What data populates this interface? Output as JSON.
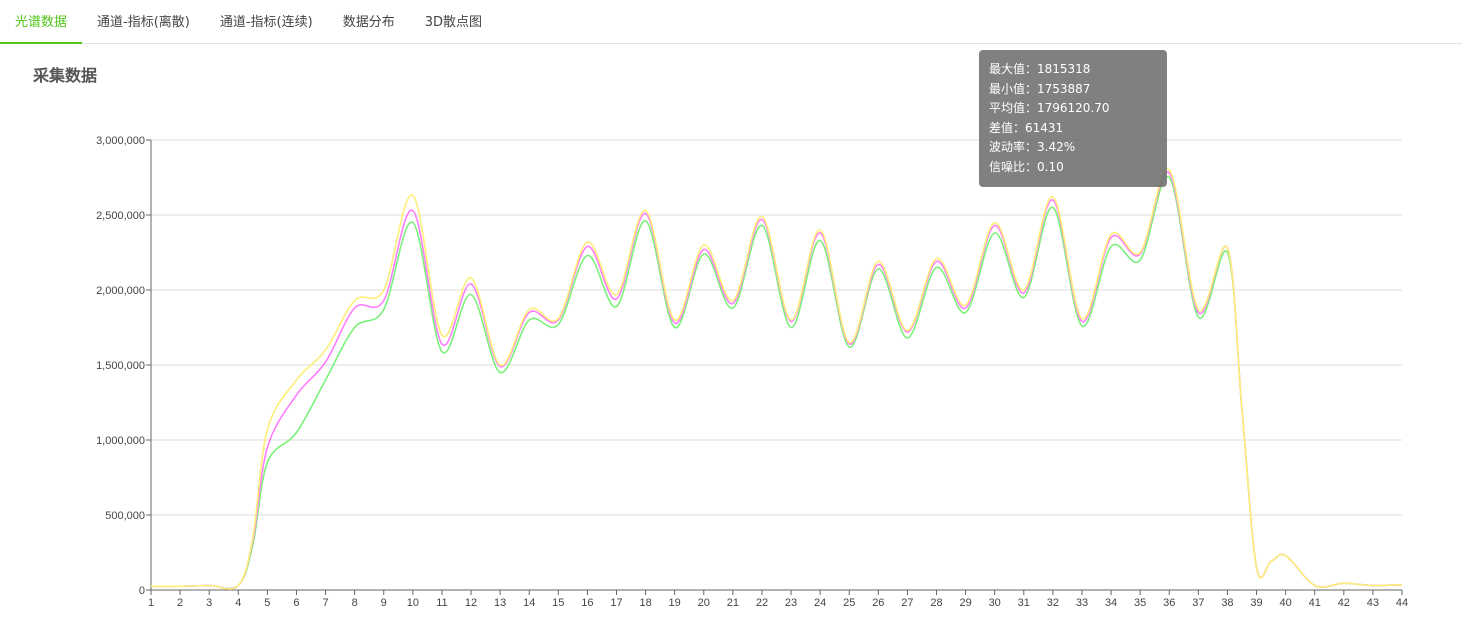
{
  "tabs": [
    {
      "label": "光谱数据",
      "active": true
    },
    {
      "label": "通道-指标(离散)"
    },
    {
      "label": "通道-指标(连续)"
    },
    {
      "label": "数据分布"
    },
    {
      "label": "3D散点图"
    }
  ],
  "section_title": "采集数据",
  "tooltip": {
    "max": "最大值：1815318",
    "min": "最小值：1753887",
    "avg": "平均值：1796120.70",
    "diff": "差值：61431",
    "volatility": "波动率：3.42%",
    "snr": "信噪比：0.10"
  },
  "colors": {
    "accent": "#52c41a"
  },
  "chart_data": {
    "type": "line",
    "xlim": [
      1,
      44
    ],
    "ylim": [
      0,
      3000000
    ],
    "grid": true,
    "x_ticks": [
      1,
      2,
      3,
      4,
      5,
      6,
      7,
      8,
      9,
      10,
      11,
      12,
      13,
      14,
      15,
      16,
      17,
      18,
      19,
      20,
      21,
      22,
      23,
      24,
      25,
      26,
      27,
      28,
      29,
      30,
      31,
      32,
      33,
      34,
      35,
      36,
      37,
      38,
      39,
      40,
      41,
      42,
      43,
      44
    ],
    "y_ticks": [
      "0",
      "500,000",
      "1,000,000",
      "1,500,000",
      "2,000,000",
      "2,500,000",
      "3,000,000"
    ],
    "y_tick_values": [
      0,
      500000,
      1000000,
      1500000,
      2000000,
      2500000,
      3000000
    ],
    "x": [
      1,
      2,
      3,
      4,
      4.5,
      5,
      6,
      7,
      8,
      9,
      10,
      11,
      12,
      13,
      14,
      15,
      16,
      17,
      18,
      19,
      20,
      21,
      22,
      23,
      24,
      25,
      26,
      27,
      28,
      29,
      30,
      31,
      32,
      33,
      34,
      35,
      36,
      37,
      38,
      38.5,
      39,
      39.5,
      40,
      41,
      42,
      43,
      44
    ],
    "series": [
      {
        "color": "#7bf27b",
        "values": [
          25000,
          25000,
          30000,
          30000,
          300000,
          850000,
          1050000,
          1400000,
          1750000,
          1870000,
          2450000,
          1590000,
          1970000,
          1450000,
          1800000,
          1770000,
          2230000,
          1890000,
          2460000,
          1750000,
          2240000,
          1880000,
          2430000,
          1750000,
          2330000,
          1620000,
          2140000,
          1680000,
          2150000,
          1850000,
          2380000,
          1950000,
          2550000,
          1760000,
          2290000,
          2200000,
          2750000,
          1820000,
          2250000,
          1200000,
          150000,
          190000,
          230000,
          30000,
          45000,
          30000,
          35000
        ]
      },
      {
        "color": "#ff7dff",
        "values": [
          25000,
          25000,
          30000,
          30000,
          330000,
          950000,
          1300000,
          1520000,
          1880000,
          1930000,
          2530000,
          1640000,
          2040000,
          1490000,
          1850000,
          1800000,
          2290000,
          1940000,
          2510000,
          1780000,
          2270000,
          1910000,
          2470000,
          1790000,
          2380000,
          1640000,
          2170000,
          1720000,
          2190000,
          1880000,
          2430000,
          1980000,
          2600000,
          1790000,
          2350000,
          2240000,
          2780000,
          1850000,
          2280000,
          1200000,
          150000,
          190000,
          230000,
          30000,
          45000,
          30000,
          35000
        ]
      },
      {
        "color": "#ffee77",
        "values": [
          25000,
          25000,
          30000,
          30000,
          350000,
          1070000,
          1400000,
          1600000,
          1930000,
          2000000,
          2630000,
          1700000,
          2080000,
          1500000,
          1870000,
          1810000,
          2320000,
          1970000,
          2530000,
          1800000,
          2300000,
          1930000,
          2490000,
          1800000,
          2400000,
          1650000,
          2190000,
          1730000,
          2210000,
          1900000,
          2450000,
          2000000,
          2620000,
          1810000,
          2370000,
          2250000,
          2800000,
          1870000,
          2280000,
          1200000,
          150000,
          190000,
          230000,
          30000,
          45000,
          30000,
          35000
        ]
      }
    ]
  }
}
